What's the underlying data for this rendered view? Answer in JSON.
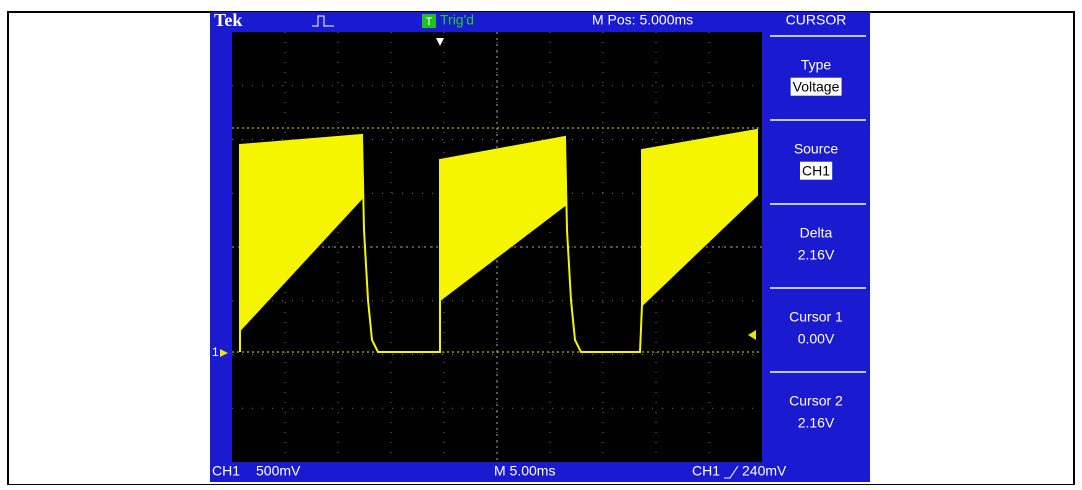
{
  "header": {
    "brand": "Tek",
    "trigger_icon": "T",
    "trigger_status": "Trig'd",
    "position": "M Pos: 5.000ms"
  },
  "menu": {
    "title": "CURSOR",
    "items": [
      {
        "label": "Type",
        "value": "Voltage"
      },
      {
        "label": "Source",
        "value": "CH1"
      },
      {
        "label": "Delta",
        "value": "2.16V"
      },
      {
        "label": "Cursor 1",
        "value": "0.00V"
      },
      {
        "label": "Cursor 2",
        "value": "2.16V"
      }
    ]
  },
  "markers": {
    "channel": "1"
  },
  "footer": {
    "channel": "CH1",
    "scale": "500mV",
    "timebase": "M 5.00ms",
    "trigger_source": "CH1",
    "trigger_level": "240mV"
  }
}
